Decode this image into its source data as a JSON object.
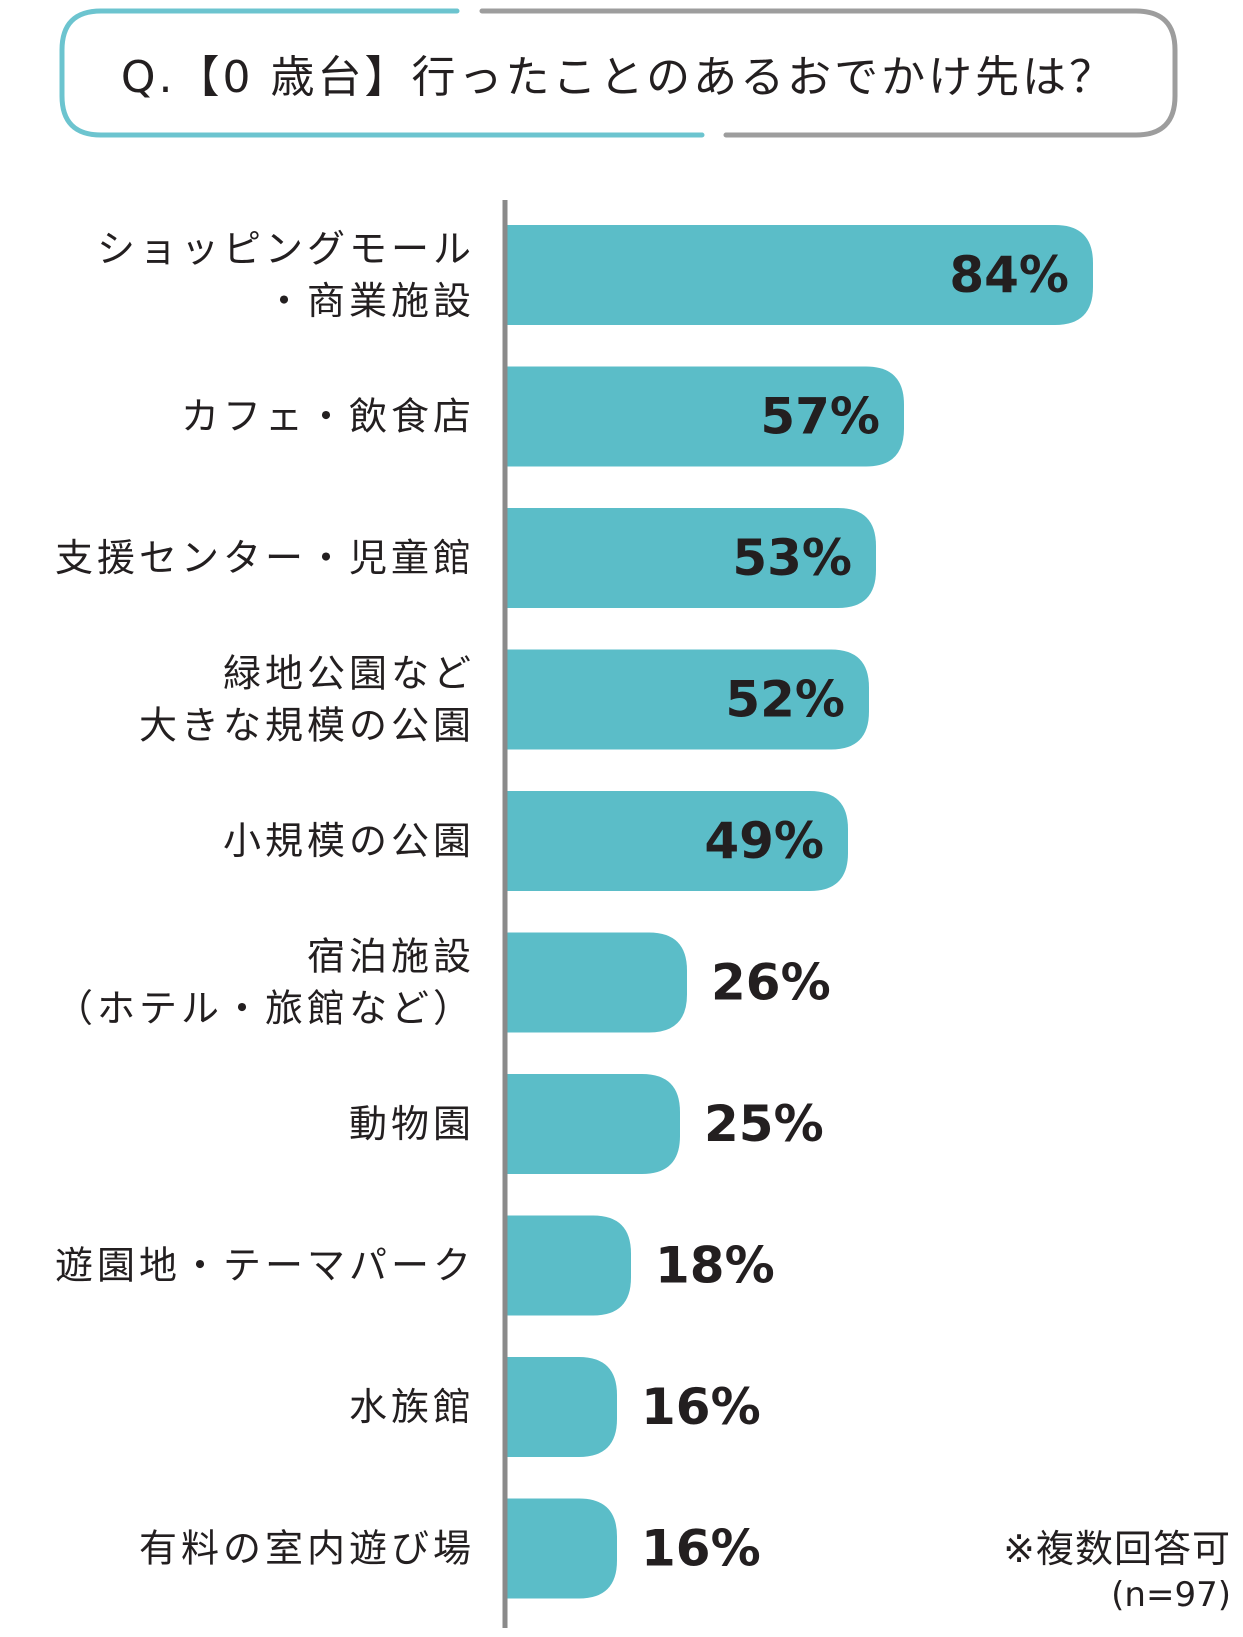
{
  "title": "Q.【0 歳台】行ったことのあるおでかけ先は？",
  "note": "※複数回答可",
  "sample_size": "(n=97)",
  "colors": {
    "bar": "#5bbdc8",
    "title_border_left": "#6cc4cf",
    "title_border_right": "#9d9d9d",
    "axis": "#8a8a8a"
  },
  "chart_data": {
    "type": "bar",
    "orientation": "horizontal",
    "categories": [
      [
        "ショッピングモール",
        "・商業施設"
      ],
      [
        "カフェ・飲食店"
      ],
      [
        "支援センター・児童館"
      ],
      [
        "緑地公園など",
        "大きな規模の公園"
      ],
      [
        "小規模の公園"
      ],
      [
        "宿泊施設",
        "（ホテル・旅館など）"
      ],
      [
        "動物園"
      ],
      [
        "遊園地・テーマパーク"
      ],
      [
        "水族館"
      ],
      [
        "有料の室内遊び場"
      ]
    ],
    "values": [
      84,
      57,
      53,
      52,
      49,
      26,
      25,
      18,
      16,
      16
    ],
    "value_labels": [
      "84%",
      "57%",
      "53%",
      "52%",
      "49%",
      "26%",
      "25%",
      "18%",
      "16%",
      "16%"
    ],
    "unit": "%",
    "xlim": [
      0,
      100
    ]
  }
}
